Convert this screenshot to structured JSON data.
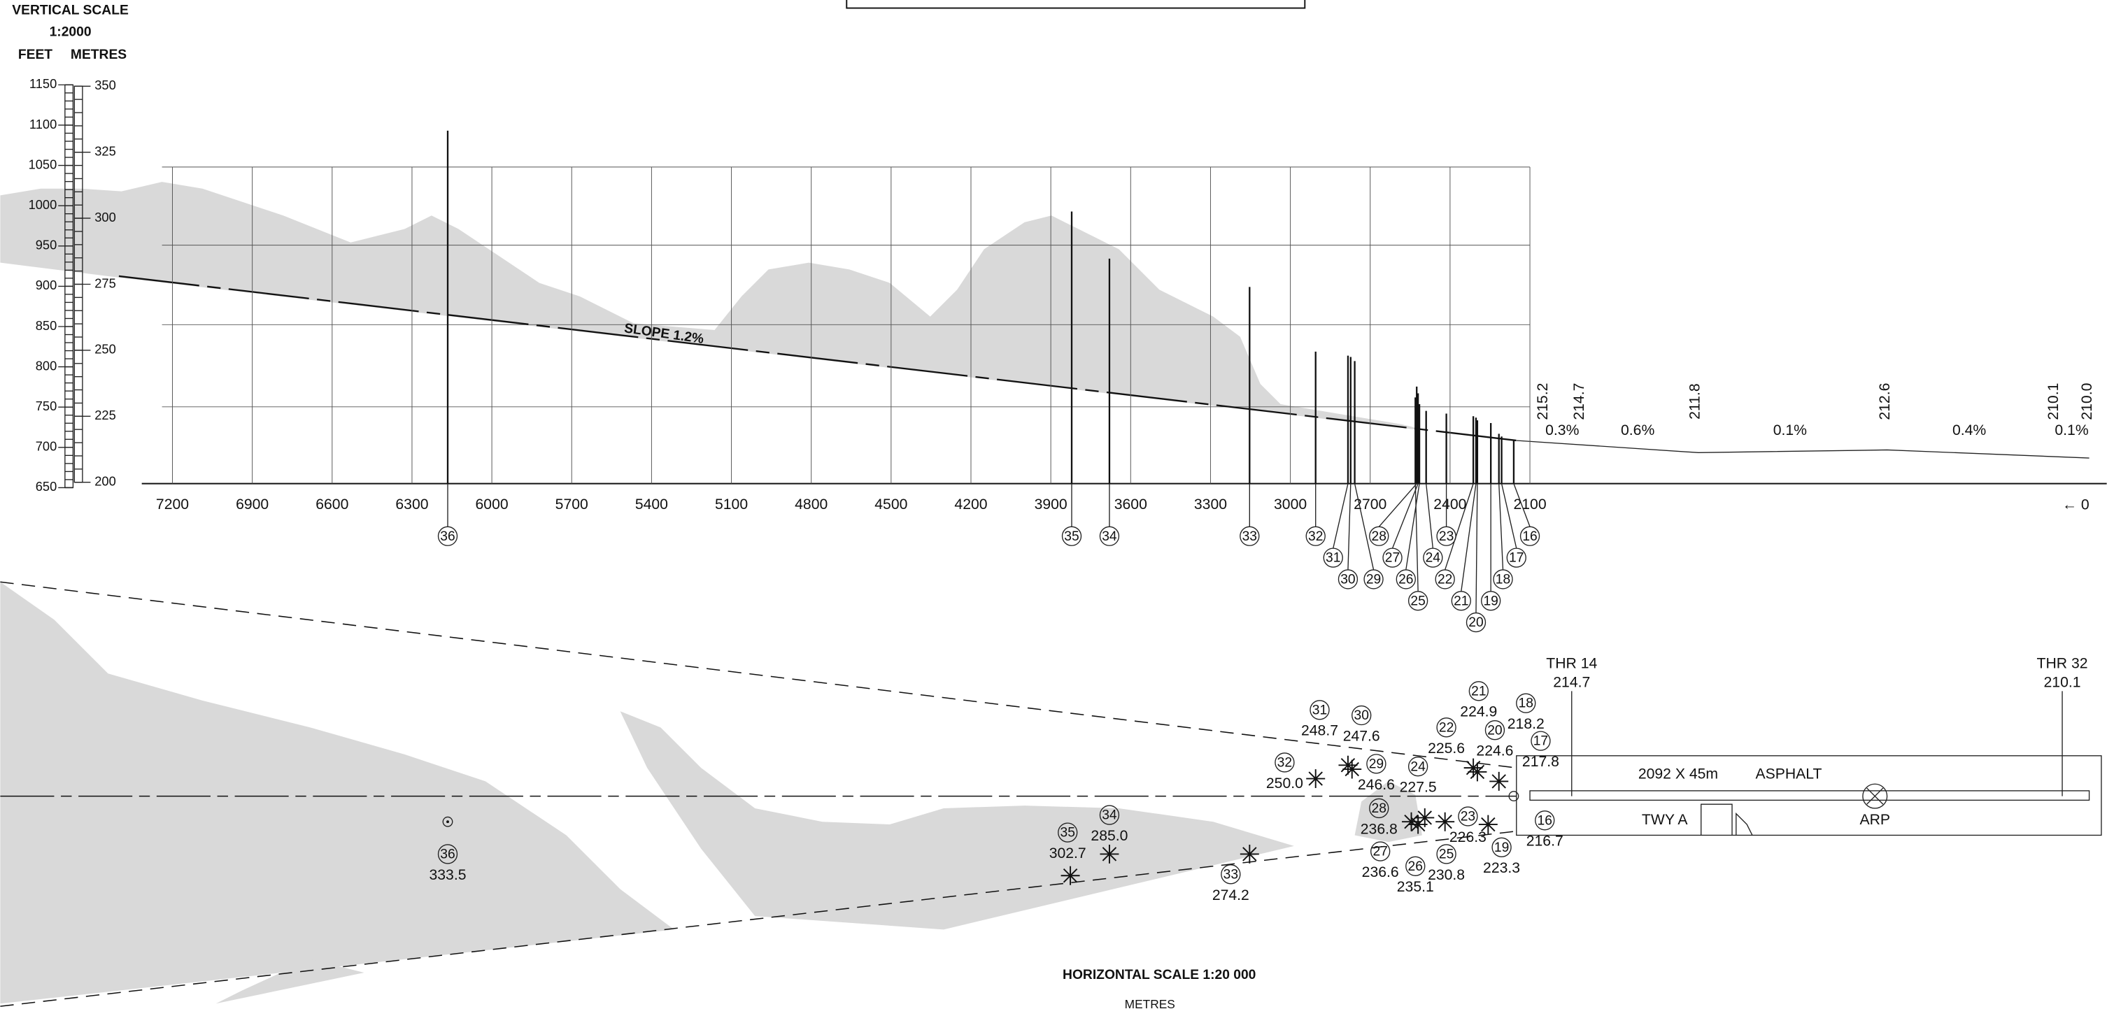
{
  "vertical_scale": {
    "title": "VERTICAL SCALE",
    "ratio": "1:2000",
    "feet_label": "FEET",
    "metres_label": "METRES",
    "feet_ticks": [
      1150,
      1100,
      1050,
      1000,
      950,
      900,
      850,
      800,
      750,
      700,
      650
    ],
    "metre_ticks": [
      350,
      325,
      300,
      275,
      250,
      225,
      200
    ]
  },
  "profile": {
    "distance_ticks": [
      7200,
      6900,
      6600,
      6300,
      6000,
      5700,
      5400,
      5100,
      4800,
      4500,
      4200,
      3900,
      3600,
      3300,
      3000,
      2700,
      2400,
      2100
    ],
    "origin": "0",
    "slope": "SLOPE 1.2%",
    "elevations": [
      "215.2",
      "214.7",
      "211.8",
      "212.6",
      "210.1",
      "210.0"
    ],
    "gradients": [
      "0.3%",
      "0.6%",
      "0.1%",
      "0.4%",
      "0.1%"
    ]
  },
  "obstacles": [
    {
      "id": "16",
      "elevation": "216.7"
    },
    {
      "id": "17",
      "elevation": "217.8"
    },
    {
      "id": "18",
      "elevation": "218.2"
    },
    {
      "id": "19",
      "elevation": "223.3"
    },
    {
      "id": "20",
      "elevation": "224.6"
    },
    {
      "id": "21",
      "elevation": "224.9"
    },
    {
      "id": "22",
      "elevation": "225.6"
    },
    {
      "id": "23",
      "elevation": "226.3"
    },
    {
      "id": "24",
      "elevation": "227.5"
    },
    {
      "id": "25",
      "elevation": "230.8"
    },
    {
      "id": "26",
      "elevation": "235.1"
    },
    {
      "id": "27",
      "elevation": "236.6"
    },
    {
      "id": "28",
      "elevation": "236.8"
    },
    {
      "id": "29",
      "elevation": "246.6"
    },
    {
      "id": "30",
      "elevation": "247.6"
    },
    {
      "id": "31",
      "elevation": "248.7"
    },
    {
      "id": "32",
      "elevation": "250.0"
    },
    {
      "id": "33",
      "elevation": "274.2"
    },
    {
      "id": "34",
      "elevation": "285.0"
    },
    {
      "id": "35",
      "elevation": "302.7"
    },
    {
      "id": "36",
      "elevation": "333.5"
    }
  ],
  "plan": {
    "thr14": {
      "label": "THR 14",
      "elevation": "214.7"
    },
    "thr32": {
      "label": "THR 32",
      "elevation": "210.1"
    },
    "runway": "2092 X 45m",
    "surface": "ASPHALT",
    "taxiway": "TWY A",
    "arp": "ARP"
  },
  "horizontal_scale": {
    "title": "HORIZONTAL SCALE 1:20 000",
    "unit": "METRES"
  }
}
